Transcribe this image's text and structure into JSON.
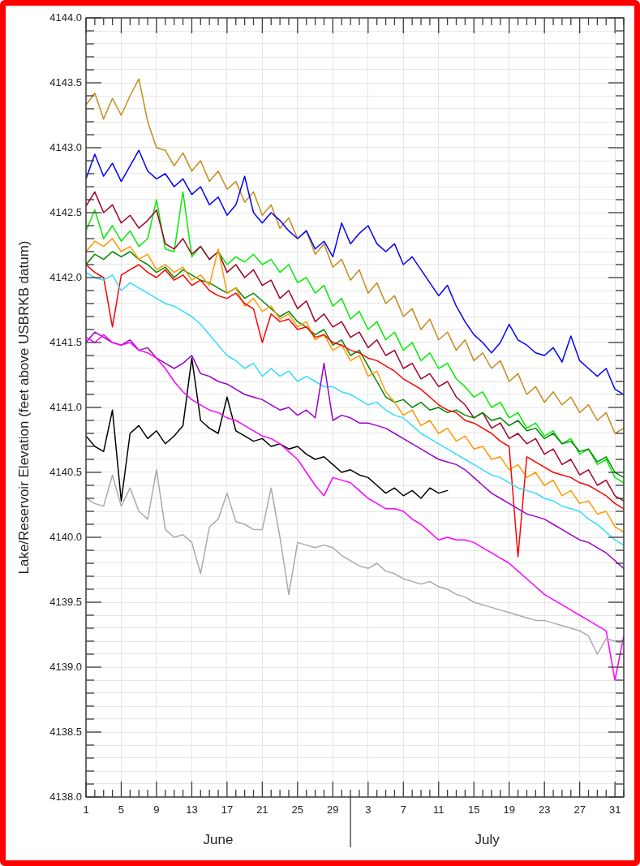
{
  "chart_data": {
    "type": "line",
    "ylabel": "Lake/Reservoir Elevation (feet above USBRKB datum)",
    "annotations": [
      "June",
      "July"
    ],
    "x": [
      "--06-01",
      "--06-02",
      "--06-03",
      "--06-04",
      "--06-05",
      "--06-06",
      "--06-07",
      "--06-08",
      "--06-09",
      "--06-10",
      "--06-11",
      "--06-12",
      "--06-13",
      "--06-14",
      "--06-15",
      "--06-16",
      "--06-17",
      "--06-18",
      "--06-19",
      "--06-20",
      "--06-21",
      "--06-22",
      "--06-23",
      "--06-24",
      "--06-25",
      "--06-26",
      "--06-27",
      "--06-28",
      "--06-29",
      "--06-30",
      "--07-01",
      "--07-02",
      "--07-03",
      "--07-04",
      "--07-05",
      "--07-06",
      "--07-07",
      "--07-08",
      "--07-09",
      "--07-10",
      "--07-11",
      "--07-12",
      "--07-13",
      "--07-14",
      "--07-15",
      "--07-16",
      "--07-17",
      "--07-18",
      "--07-19",
      "--07-20",
      "--07-21",
      "--07-22",
      "--07-23",
      "--07-24",
      "--07-25",
      "--07-26",
      "--07-27",
      "--07-28",
      "--07-29",
      "--07-30",
      "--07-31",
      "--08-01"
    ],
    "xlim": [
      "--06-01",
      "--08-01"
    ],
    "xticks": [
      {
        "value": "--06-01",
        "label": "1"
      },
      {
        "value": "--06-05",
        "label": "5"
      },
      {
        "value": "--06-09",
        "label": "9"
      },
      {
        "value": "--06-13",
        "label": "13"
      },
      {
        "value": "--06-17",
        "label": "17"
      },
      {
        "value": "--06-21",
        "label": "21"
      },
      {
        "value": "--06-25",
        "label": "25"
      },
      {
        "value": "--06-29",
        "label": "29"
      },
      {
        "value": "--07-03",
        "label": "3"
      },
      {
        "value": "--07-07",
        "label": "7"
      },
      {
        "value": "--07-11",
        "label": "11"
      },
      {
        "value": "--07-15",
        "label": "15"
      },
      {
        "value": "--07-19",
        "label": "19"
      },
      {
        "value": "--07-23",
        "label": "23"
      },
      {
        "value": "--07-27",
        "label": "27"
      },
      {
        "value": "--07-31",
        "label": "31"
      }
    ],
    "ylim": [
      4138,
      4144
    ],
    "yticks": [
      {
        "value": 4138,
        "label": "4138.0"
      },
      {
        "value": 4138.1,
        "label": null
      },
      {
        "value": 4138.2,
        "label": null
      },
      {
        "value": 4138.3,
        "label": null
      },
      {
        "value": 4138.4,
        "label": null
      },
      {
        "value": 4138.5,
        "label": "4138.5"
      },
      {
        "value": 4138.6,
        "label": null
      },
      {
        "value": 4138.7,
        "label": null
      },
      {
        "value": 4138.8,
        "label": null
      },
      {
        "value": 4138.9,
        "label": null
      },
      {
        "value": 4139,
        "label": "4139.0"
      },
      {
        "value": 4139.1,
        "label": null
      },
      {
        "value": 4139.2,
        "label": null
      },
      {
        "value": 4139.3,
        "label": null
      },
      {
        "value": 4139.4,
        "label": null
      },
      {
        "value": 4139.5,
        "label": "4139.5"
      },
      {
        "value": 4139.6,
        "label": null
      },
      {
        "value": 4139.7,
        "label": null
      },
      {
        "value": 4139.8,
        "label": null
      },
      {
        "value": 4139.9,
        "label": null
      },
      {
        "value": 4140,
        "label": "4140.0"
      },
      {
        "value": 4140.1,
        "label": null
      },
      {
        "value": 4140.2,
        "label": null
      },
      {
        "value": 4140.3,
        "label": null
      },
      {
        "value": 4140.4,
        "label": null
      },
      {
        "value": 4140.5,
        "label": "4140.5"
      },
      {
        "value": 4140.6,
        "label": null
      },
      {
        "value": 4140.7,
        "label": null
      },
      {
        "value": 4140.8,
        "label": null
      },
      {
        "value": 4140.9,
        "label": null
      },
      {
        "value": 4141,
        "label": "4141.0"
      },
      {
        "value": 4141.1,
        "label": null
      },
      {
        "value": 4141.2,
        "label": null
      },
      {
        "value": 4141.3,
        "label": null
      },
      {
        "value": 4141.4,
        "label": null
      },
      {
        "value": 4141.5,
        "label": "4141.5"
      },
      {
        "value": 4141.6,
        "label": null
      },
      {
        "value": 4141.7,
        "label": null
      },
      {
        "value": 4141.8,
        "label": null
      },
      {
        "value": 4141.9,
        "label": null
      },
      {
        "value": 4142,
        "label": "4142.0"
      },
      {
        "value": 4142.1,
        "label": null
      },
      {
        "value": 4142.2,
        "label": null
      },
      {
        "value": 4142.3,
        "label": null
      },
      {
        "value": 4142.4,
        "label": null
      },
      {
        "value": 4142.5,
        "label": "4142.5"
      },
      {
        "value": 4142.6,
        "label": null
      },
      {
        "value": 4142.7,
        "label": null
      },
      {
        "value": 4142.8,
        "label": null
      },
      {
        "value": 4142.9,
        "label": null
      },
      {
        "value": 4143,
        "label": "4143.0"
      },
      {
        "value": 4143.1,
        "label": null
      },
      {
        "value": 4143.2,
        "label": null
      },
      {
        "value": 4143.3,
        "label": null
      },
      {
        "value": 4143.4,
        "label": null
      },
      {
        "value": 4143.5,
        "label": "4143.5"
      },
      {
        "value": 4143.6,
        "label": null
      },
      {
        "value": 4143.7,
        "label": null
      },
      {
        "value": 4143.8,
        "label": null
      },
      {
        "value": 4143.9,
        "label": null
      },
      {
        "value": 4144,
        "label": "4144.0"
      }
    ],
    "grid": true,
    "marker": "none",
    "line_style": "solid",
    "series": [
      {
        "color": "#aaaaaa",
        "values": [
          4140.3,
          4140.26,
          4140.24,
          4140.48,
          4140.24,
          4140.38,
          4140.2,
          4140.14,
          4140.52,
          4140.06,
          4140.0,
          4140.02,
          4139.96,
          4139.72,
          4140.08,
          4140.14,
          4140.34,
          4140.12,
          4140.1,
          4140.06,
          4140.06,
          4140.38,
          4140.0,
          4139.56,
          4139.96,
          4139.94,
          4139.92,
          4139.94,
          4139.92,
          4139.86,
          4139.82,
          4139.78,
          4139.76,
          4139.8,
          4139.74,
          4139.72,
          4139.68,
          4139.66,
          4139.64,
          4139.66,
          4139.62,
          4139.6,
          4139.56,
          4139.54,
          4139.5,
          4139.48,
          4139.46,
          4139.44,
          4139.42,
          4139.4,
          4139.38,
          4139.36,
          4139.36,
          4139.34,
          4139.32,
          4139.3,
          4139.28,
          4139.24,
          4139.1,
          4139.22,
          4139.2,
          4139.18
        ]
      },
      {
        "color": "#ff00ff",
        "values": [
          4141.54,
          4141.5,
          4141.56,
          4141.5,
          4141.48,
          4141.5,
          4141.44,
          4141.42,
          4141.38,
          4141.3,
          4141.2,
          4141.12,
          4141.06,
          4141.02,
          4140.98,
          4140.96,
          4140.92,
          4140.9,
          4140.86,
          4140.82,
          4140.78,
          4140.76,
          4140.72,
          4140.66,
          4140.6,
          4140.5,
          4140.4,
          4140.32,
          4140.46,
          4140.44,
          4140.42,
          4140.36,
          4140.3,
          4140.26,
          4140.22,
          4140.22,
          4140.2,
          4140.14,
          4140.1,
          4140.04,
          4139.98,
          4140.0,
          4139.98,
          4139.98,
          4139.96,
          4139.92,
          4139.88,
          4139.84,
          4139.8,
          4139.74,
          4139.68,
          4139.62,
          4139.56,
          4139.52,
          4139.48,
          4139.44,
          4139.4,
          4139.36,
          4139.32,
          4139.28,
          4138.9,
          4139.24
        ]
      },
      {
        "color": "#9900cc",
        "values": [
          4141.5,
          4141.58,
          4141.54,
          4141.5,
          4141.48,
          4141.52,
          4141.44,
          4141.46,
          4141.38,
          4141.34,
          4141.3,
          4141.34,
          4141.4,
          4141.26,
          4141.24,
          4141.2,
          4141.18,
          4141.14,
          4141.1,
          4141.08,
          4141.06,
          4141.02,
          4140.98,
          4141.0,
          4140.94,
          4140.98,
          4140.92,
          4141.34,
          4140.9,
          4140.94,
          4140.92,
          4140.88,
          4140.88,
          4140.86,
          4140.84,
          4140.8,
          4140.76,
          4140.72,
          4140.68,
          4140.64,
          4140.6,
          4140.58,
          4140.56,
          4140.52,
          4140.46,
          4140.4,
          4140.34,
          4140.3,
          4140.26,
          4140.22,
          4140.18,
          4140.16,
          4140.14,
          4140.1,
          4140.06,
          4140.02,
          4139.98,
          4139.96,
          4139.92,
          4139.88,
          4139.82,
          4139.76
        ]
      },
      {
        "color": "#33ddff",
        "values": [
          4142.04,
          4142.0,
          4141.98,
          4142.02,
          4141.9,
          4141.96,
          4141.92,
          4141.88,
          4141.84,
          4141.8,
          4141.78,
          4141.74,
          4141.7,
          4141.64,
          4141.56,
          4141.48,
          4141.4,
          4141.36,
          4141.3,
          4141.34,
          4141.24,
          4141.3,
          4141.24,
          4141.28,
          4141.2,
          4141.24,
          4141.2,
          4141.16,
          4141.16,
          4141.12,
          4141.1,
          4141.06,
          4141.02,
          4141.04,
          4140.98,
          4140.94,
          4140.92,
          4140.86,
          4140.8,
          4140.76,
          4140.72,
          4140.68,
          4140.64,
          4140.6,
          4140.56,
          4140.52,
          4140.48,
          4140.46,
          4140.42,
          4140.38,
          4140.36,
          4140.34,
          4140.3,
          4140.28,
          4140.24,
          4140.22,
          4140.2,
          4140.14,
          4140.1,
          4140.04,
          4139.98,
          4139.94
        ]
      },
      {
        "color": "#ff0000",
        "values": [
          4142.1,
          4142.04,
          4142.0,
          4141.62,
          4142.02,
          4142.06,
          4142.1,
          4142.04,
          4142.0,
          4142.06,
          4141.98,
          4142.02,
          4141.94,
          4141.98,
          4141.9,
          4141.86,
          4141.84,
          4141.88,
          4141.8,
          4141.76,
          4141.5,
          4141.72,
          4141.66,
          4141.68,
          4141.6,
          4141.62,
          4141.54,
          4141.56,
          4141.5,
          4141.48,
          4141.44,
          4141.42,
          4141.38,
          4141.36,
          4141.32,
          4141.28,
          4141.22,
          4141.18,
          4141.14,
          4141.08,
          4141.02,
          4140.98,
          4140.96,
          4140.9,
          4140.88,
          4140.84,
          4140.8,
          4140.74,
          4140.7,
          4139.85,
          4140.62,
          4140.58,
          4140.54,
          4140.5,
          4140.48,
          4140.46,
          4140.42,
          4140.4,
          4140.36,
          4140.32,
          4140.26,
          4140.22
        ]
      },
      {
        "color": "#ff9900",
        "values": [
          4142.2,
          4142.28,
          4142.24,
          4142.3,
          4142.2,
          4142.24,
          4142.14,
          4142.18,
          4142.06,
          4142.1,
          4142.04,
          4142.08,
          4141.98,
          4142.02,
          4141.94,
          4142.22,
          4141.88,
          4141.92,
          4141.78,
          4141.84,
          4141.74,
          4141.78,
          4141.68,
          4141.72,
          4141.62,
          4141.66,
          4141.52,
          4141.56,
          4141.44,
          4141.48,
          4141.36,
          4141.4,
          4141.24,
          4141.28,
          4141.12,
          4141.04,
          4140.94,
          4140.98,
          4140.86,
          4140.9,
          4140.8,
          4140.84,
          4140.74,
          4140.78,
          4140.68,
          4140.7,
          4140.6,
          4140.62,
          4140.52,
          4140.56,
          4140.46,
          4140.5,
          4140.4,
          4140.44,
          4140.32,
          4140.36,
          4140.26,
          4140.28,
          4140.18,
          4140.2,
          4140.08,
          4140.04
        ]
      },
      {
        "color": "#008800",
        "values": [
          4142.1,
          4142.18,
          4142.14,
          4142.2,
          4142.16,
          4142.2,
          4142.14,
          4142.1,
          4142.04,
          4142.08,
          4142.0,
          4142.06,
          4142.02,
          4141.98,
          4141.96,
          4141.92,
          4141.88,
          4141.92,
          4141.84,
          4141.88,
          4141.82,
          4141.76,
          4141.7,
          4141.74,
          4141.66,
          4141.62,
          4141.56,
          4141.6,
          4141.48,
          4141.52,
          4141.4,
          4141.44,
          4141.32,
          4141.2,
          4141.08,
          4141.04,
          4141.06,
          4141.0,
          4141.04,
          4140.98,
          4141.0,
          4140.96,
          4140.98,
          4140.94,
          4140.92,
          4140.96,
          4140.9,
          4140.92,
          4140.86,
          4140.9,
          4140.82,
          4140.84,
          4140.76,
          4140.8,
          4140.72,
          4140.74,
          4140.66,
          4140.68,
          4140.58,
          4140.62,
          4140.5,
          4140.46
        ]
      },
      {
        "color": "#a0002a",
        "values": [
          4142.55,
          4142.66,
          4142.5,
          4142.56,
          4142.42,
          4142.48,
          4142.38,
          4142.44,
          4142.52,
          4142.26,
          4142.22,
          4142.3,
          4142.18,
          4142.24,
          4142.14,
          4142.2,
          4142.04,
          4142.1,
          4142.0,
          4142.06,
          4141.94,
          4141.98,
          4141.84,
          4141.9,
          4141.76,
          4141.82,
          4141.66,
          4141.72,
          4141.62,
          4141.66,
          4141.54,
          4141.58,
          4141.46,
          4141.52,
          4141.4,
          4141.44,
          4141.3,
          4141.34,
          4141.22,
          4141.26,
          4141.16,
          4141.2,
          4141.08,
          4141.02,
          4140.92,
          4140.96,
          4140.84,
          4140.88,
          4140.76,
          4140.8,
          4140.72,
          4140.76,
          4140.64,
          4140.68,
          4140.56,
          4140.6,
          4140.48,
          4140.52,
          4140.4,
          4140.44,
          4140.32,
          4140.28
        ]
      },
      {
        "color": "#00ee00",
        "values": [
          4142.36,
          4142.52,
          4142.3,
          4142.4,
          4142.28,
          4142.36,
          4142.24,
          4142.3,
          4142.6,
          4142.22,
          4142.2,
          4142.66,
          4142.16,
          4142.24,
          4142.14,
          4142.2,
          4142.1,
          4142.16,
          4142.12,
          4142.18,
          4142.1,
          4142.14,
          4142.04,
          4142.1,
          4141.96,
          4142.0,
          4141.88,
          4141.94,
          4141.78,
          4141.84,
          4141.68,
          4141.74,
          4141.6,
          4141.66,
          4141.52,
          4141.58,
          4141.44,
          4141.5,
          4141.36,
          4141.42,
          4141.3,
          4141.34,
          4141.22,
          4141.16,
          4141.08,
          4141.12,
          4141.0,
          4141.04,
          4140.92,
          4140.96,
          4140.84,
          4140.88,
          4140.78,
          4140.82,
          4140.72,
          4140.76,
          4140.64,
          4140.68,
          4140.56,
          4140.6,
          4140.46,
          4140.42
        ]
      },
      {
        "color": "#0000ff",
        "values": [
          4142.76,
          4142.95,
          4142.78,
          4142.88,
          4142.74,
          4142.86,
          4142.98,
          4142.82,
          4142.76,
          4142.8,
          4142.7,
          4142.76,
          4142.64,
          4142.7,
          4142.56,
          4142.62,
          4142.48,
          4142.56,
          4142.78,
          4142.5,
          4142.42,
          4142.5,
          4142.44,
          4142.36,
          4142.3,
          4142.36,
          4142.22,
          4142.28,
          4142.16,
          4142.42,
          4142.26,
          4142.34,
          4142.4,
          4142.26,
          4142.2,
          4142.26,
          4142.1,
          4142.16,
          4142.06,
          4141.96,
          4141.86,
          4141.94,
          4141.78,
          4141.66,
          4141.56,
          4141.5,
          4141.42,
          4141.5,
          4141.64,
          4141.52,
          4141.48,
          4141.42,
          4141.4,
          4141.46,
          4141.35,
          4141.55,
          4141.36,
          4141.3,
          4141.24,
          4141.3,
          4141.14,
          4141.1
        ]
      },
      {
        "color": "#c68a1d",
        "values": [
          4143.33,
          4143.42,
          4143.22,
          4143.38,
          4143.25,
          4143.4,
          4143.53,
          4143.2,
          4143.0,
          4142.98,
          4142.86,
          4142.96,
          4142.82,
          4142.9,
          4142.74,
          4142.82,
          4142.68,
          4142.74,
          4142.58,
          4142.66,
          4142.48,
          4142.56,
          4142.38,
          4142.46,
          4142.3,
          4142.36,
          4142.18,
          4142.26,
          4142.08,
          4142.14,
          4141.98,
          4142.06,
          4141.88,
          4141.96,
          4141.8,
          4141.86,
          4141.7,
          4141.76,
          4141.6,
          4141.68,
          4141.52,
          4141.58,
          4141.44,
          4141.52,
          4141.36,
          4141.42,
          4141.3,
          4141.36,
          4141.2,
          4141.26,
          4141.1,
          4141.16,
          4141.04,
          4141.12,
          4141.02,
          4141.08,
          4140.96,
          4141.02,
          4140.9,
          4140.96,
          4140.8,
          4140.84
        ]
      },
      {
        "color": "#000000",
        "values": [
          4140.78,
          4140.7,
          4140.66,
          4140.98,
          4140.28,
          4140.8,
          4140.86,
          4140.76,
          4140.82,
          4140.72,
          4140.78,
          4140.86,
          4141.38,
          4140.9,
          4140.84,
          4140.8,
          4141.08,
          4140.82,
          4140.78,
          4140.74,
          4140.76,
          4140.7,
          4140.72,
          4140.68,
          4140.7,
          4140.64,
          4140.6,
          4140.62,
          4140.56,
          4140.5,
          4140.52,
          4140.48,
          4140.46,
          4140.4,
          4140.34,
          4140.38,
          4140.32,
          4140.36,
          4140.3,
          4140.38,
          4140.34,
          4140.36,
          null,
          null,
          null,
          null,
          null,
          null,
          null,
          null,
          null,
          null,
          null,
          null,
          null,
          null,
          null,
          null,
          null,
          null,
          null,
          null
        ]
      }
    ]
  }
}
